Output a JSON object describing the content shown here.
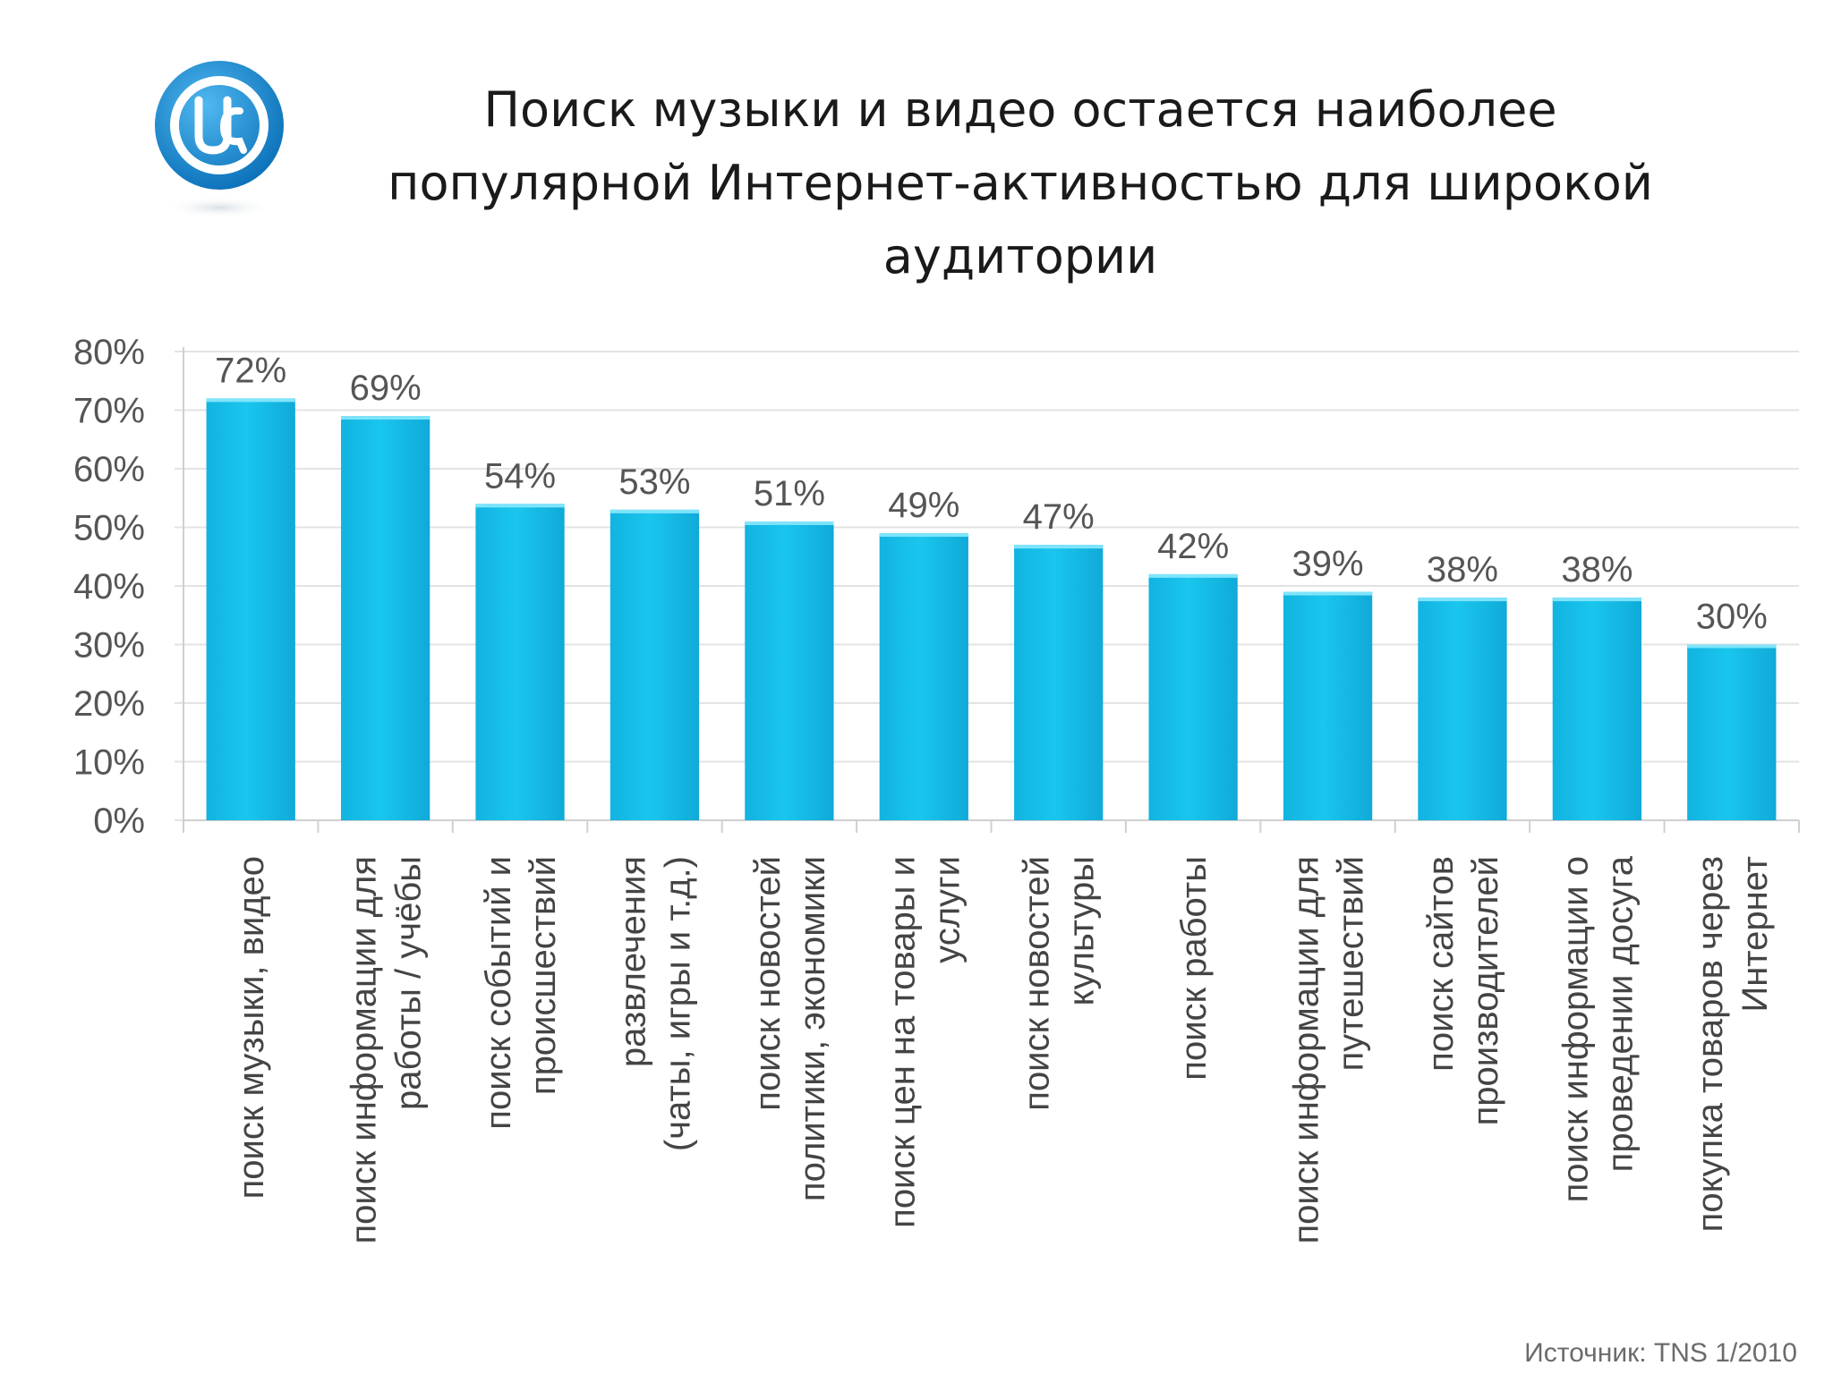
{
  "title_lines": [
    "Поиск музыки и видео остается наиболее",
    "популярной Интернет-активностью для широкой",
    "аудитории"
  ],
  "source": "Источник: TNS 1/2010",
  "logo": {
    "icon": "ua-at-logo-icon",
    "color": "#1a8fd6"
  },
  "chart_data": {
    "type": "bar",
    "categories": [
      [
        "поиск музыки, видео"
      ],
      [
        "поиск информации для",
        "работы / учёбы"
      ],
      [
        "поиск событий и",
        "происшествий"
      ],
      [
        "развлечения",
        "(чаты, игры и т.д.)"
      ],
      [
        "поиск новостей",
        "политики, экономики"
      ],
      [
        "поиск цен на товары и",
        "услуги"
      ],
      [
        "поиск новостей",
        "культуры"
      ],
      [
        "поиск работы"
      ],
      [
        "поиск информации для",
        "путешествий"
      ],
      [
        "поиск сайтов",
        "производителей"
      ],
      [
        "поиск информации о",
        "проведении досуга"
      ],
      [
        "покупка товаров через",
        "Интернет"
      ]
    ],
    "values": [
      72,
      69,
      54,
      53,
      51,
      49,
      47,
      42,
      39,
      38,
      38,
      30
    ],
    "data_labels": [
      "72%",
      "69%",
      "54%",
      "53%",
      "51%",
      "49%",
      "47%",
      "42%",
      "39%",
      "38%",
      "38%",
      "30%"
    ],
    "ylim": [
      0,
      80
    ],
    "yticks": [
      "0%",
      "10%",
      "20%",
      "30%",
      "40%",
      "50%",
      "60%",
      "70%",
      "80%"
    ],
    "grid": true,
    "bar_color": "#19c6ee"
  }
}
